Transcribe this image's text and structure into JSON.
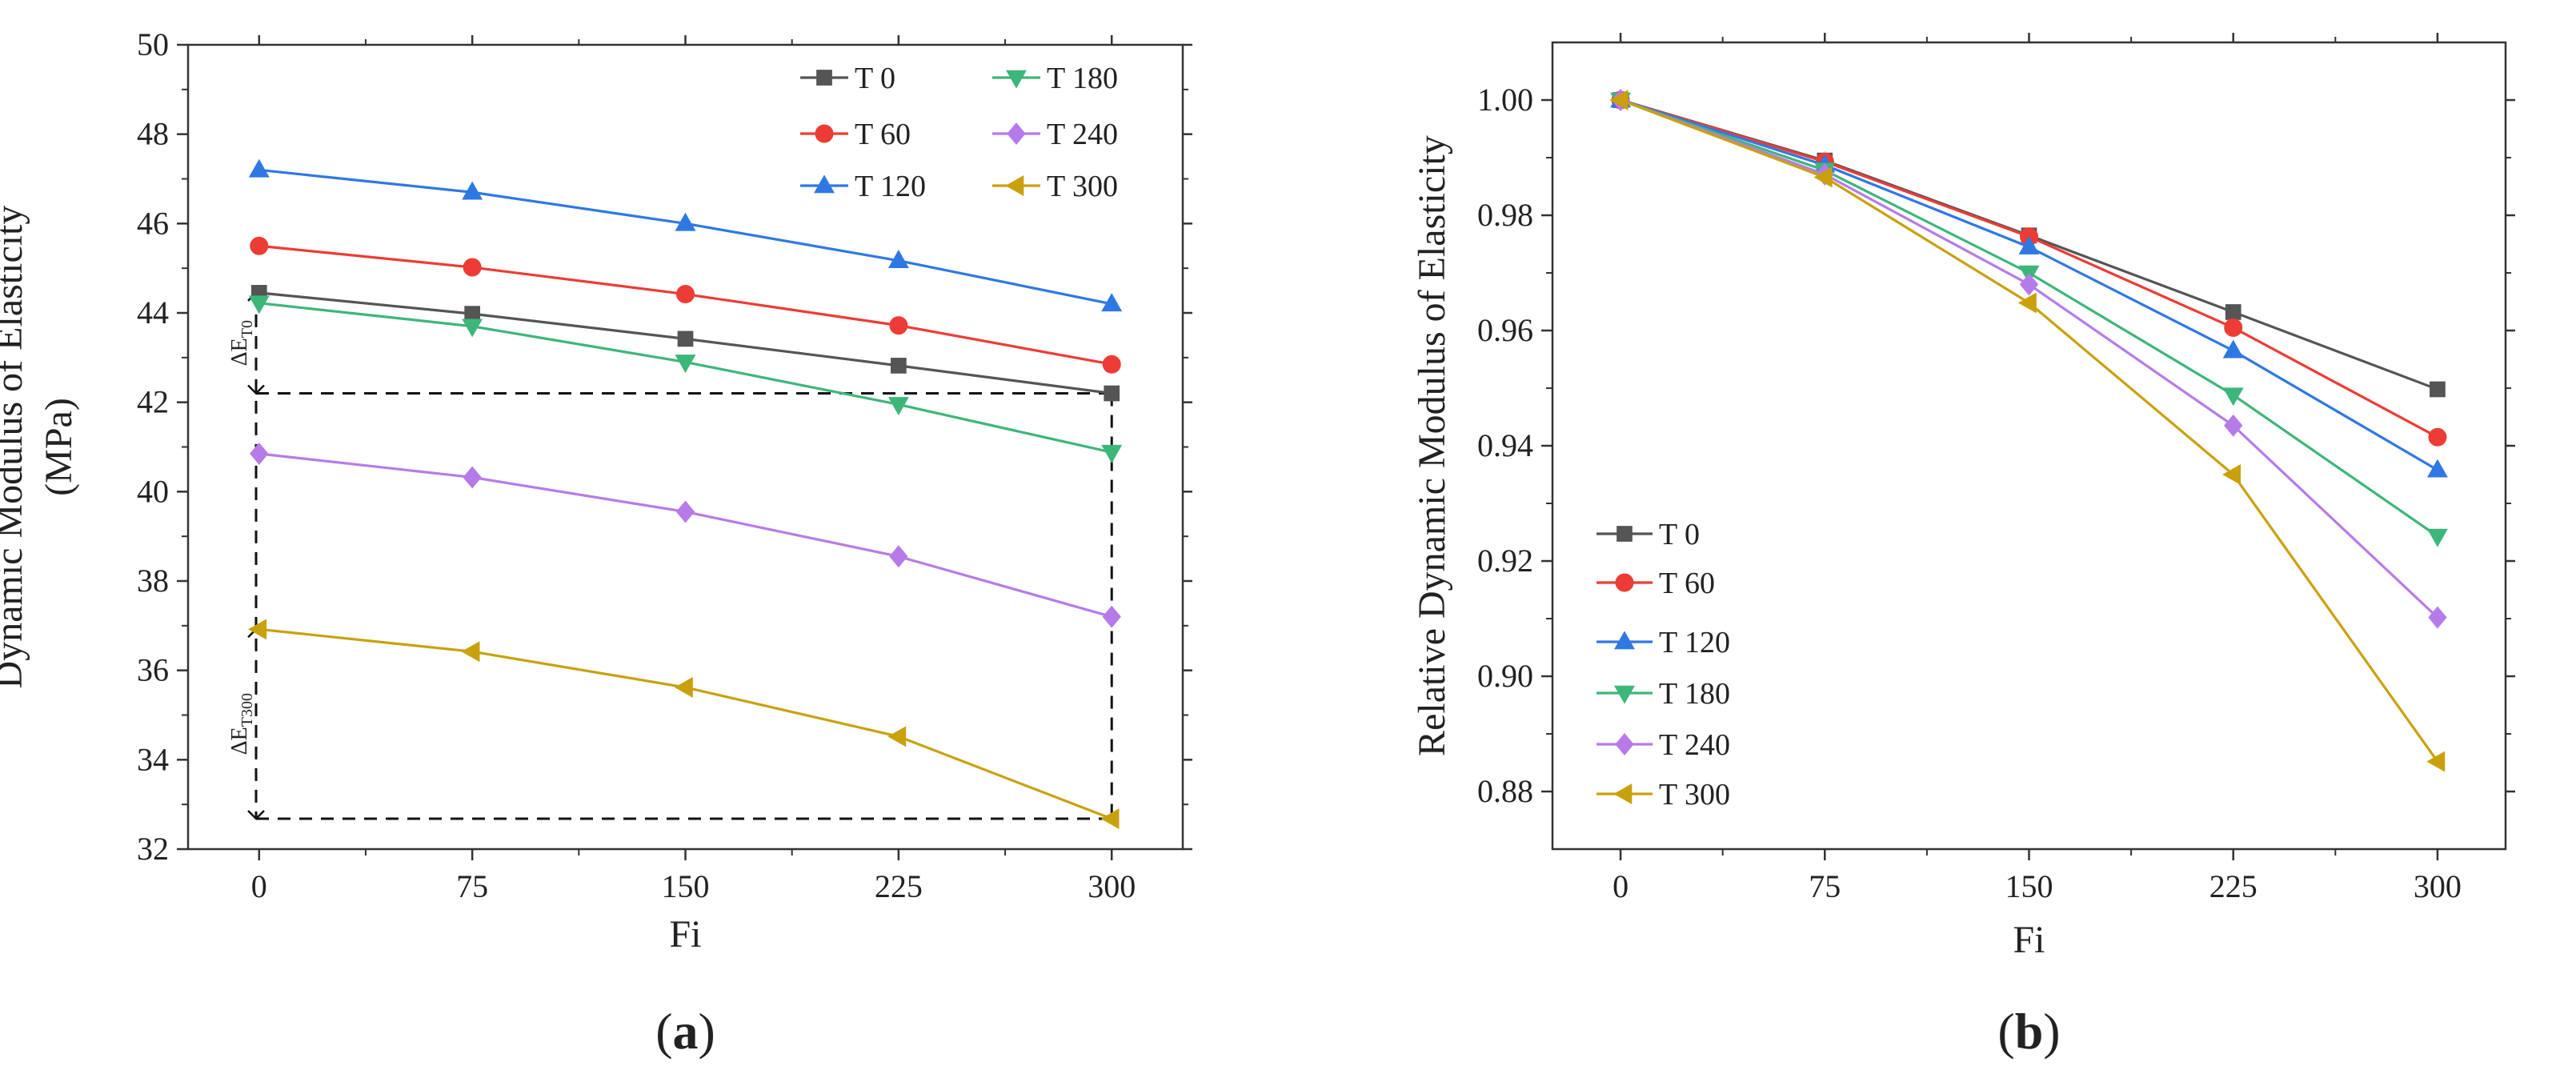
{
  "chart_data": [
    {
      "type": "line",
      "panel_label": "a",
      "title": "",
      "xlabel": "Fi",
      "ylabel": [
        "Dynamic Modulus of Elasticity",
        "(MPa)"
      ],
      "x": [
        0,
        75,
        150,
        225,
        300
      ],
      "xticks": [
        "0",
        "75",
        "150",
        "225",
        "300"
      ],
      "xlim": [
        -25,
        325
      ],
      "ylim": [
        32,
        50
      ],
      "yticks": [
        "32",
        "34",
        "36",
        "38",
        "40",
        "42",
        "44",
        "46",
        "48",
        "50"
      ],
      "series": [
        {
          "name": "T 0",
          "color": "#555555",
          "marker": "square",
          "values": [
            44.45,
            43.98,
            43.42,
            42.82,
            42.2
          ]
        },
        {
          "name": "T 60",
          "color": "#ec3c35",
          "marker": "circle",
          "values": [
            45.5,
            45.02,
            44.42,
            43.72,
            42.85
          ]
        },
        {
          "name": "T 120",
          "color": "#2f78e4",
          "marker": "triangle-up",
          "values": [
            47.2,
            46.7,
            46.0,
            45.17,
            44.2
          ]
        },
        {
          "name": "T 180",
          "color": "#3db67a",
          "marker": "triangle-down",
          "values": [
            44.22,
            43.7,
            42.9,
            41.95,
            40.88
          ]
        },
        {
          "name": "T 240",
          "color": "#b67be8",
          "marker": "diamond",
          "values": [
            40.85,
            40.32,
            39.55,
            38.55,
            37.2
          ]
        },
        {
          "name": "T 300",
          "color": "#c9a10c",
          "marker": "triangle-left",
          "values": [
            36.92,
            36.42,
            35.62,
            34.52,
            32.68
          ]
        }
      ],
      "legend": "top-right",
      "annotations": [
        {
          "main": "ΔE",
          "sub": "T0",
          "from": 44.45,
          "to": 42.2
        },
        {
          "main": "ΔE",
          "sub": "T300",
          "from": 36.92,
          "to": 32.68
        }
      ]
    },
    {
      "type": "line",
      "panel_label": "b",
      "title": "",
      "xlabel": "Fi",
      "ylabel": [
        "Relative Dynamic Modulus of Elasticity"
      ],
      "x": [
        0,
        75,
        150,
        225,
        300
      ],
      "xticks": [
        "0",
        "75",
        "150",
        "225",
        "300"
      ],
      "xlim": [
        -25,
        325
      ],
      "ylim": [
        0.87,
        1.01
      ],
      "yticks": [
        "0.88",
        "0.90",
        "0.92",
        "0.94",
        "0.96",
        "0.98",
        "1.00"
      ],
      "series": [
        {
          "name": "T 0",
          "color": "#555555",
          "marker": "square",
          "values": [
            1.0,
            0.9895,
            0.9765,
            0.9632,
            0.9498
          ]
        },
        {
          "name": "T 60",
          "color": "#ec3c35",
          "marker": "circle",
          "values": [
            1.0,
            0.9893,
            0.9763,
            0.9605,
            0.9415
          ]
        },
        {
          "name": "T 120",
          "color": "#2f78e4",
          "marker": "triangle-up",
          "values": [
            1.0,
            0.9887,
            0.9745,
            0.9565,
            0.9358
          ]
        },
        {
          "name": "T 180",
          "color": "#3db67a",
          "marker": "triangle-down",
          "values": [
            1.0,
            0.9878,
            0.97,
            0.9488,
            0.9243
          ]
        },
        {
          "name": "T 240",
          "color": "#b67be8",
          "marker": "diamond",
          "values": [
            1.0,
            0.9871,
            0.968,
            0.9435,
            0.9102
          ]
        },
        {
          "name": "T 300",
          "color": "#c9a10c",
          "marker": "triangle-left",
          "values": [
            1.0,
            0.9866,
            0.9648,
            0.935,
            0.8852
          ]
        }
      ],
      "legend": "bottom-left"
    }
  ]
}
